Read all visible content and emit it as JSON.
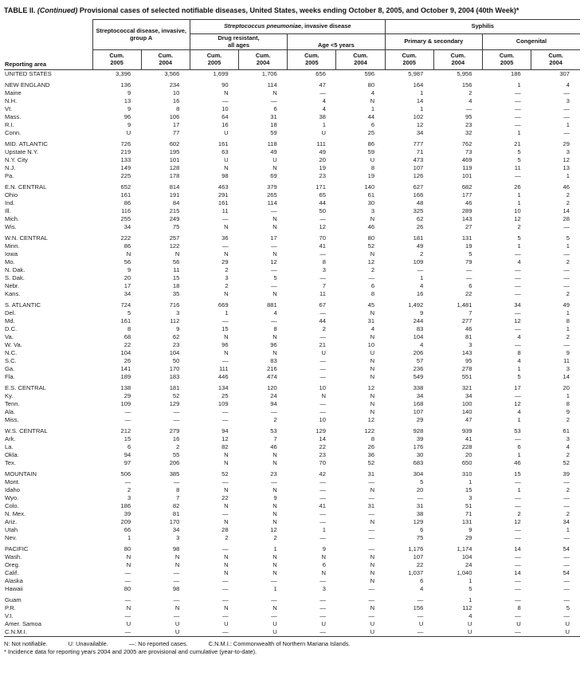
{
  "title": {
    "table_label": "TABLE II.",
    "continued": "(Continued)",
    "rest": "Provisional cases of selected notifiable diseases, United States, weeks ending October 8, 2005, and October 9, 2004 (40th Week)*"
  },
  "header": {
    "reporting_area": "Reporting area",
    "group_a": "Streptococcal disease, invasive, group A",
    "pneumoniae_italic": "Streptococcus pneumoniae",
    "pneumoniae_rest": ", invasive disease",
    "drug_resistant_line1": "Drug resistant,",
    "drug_resistant_line2": "all ages",
    "age_under5": "Age <5 years",
    "syphilis": "Syphilis",
    "primary_secondary": "Primary & secondary",
    "congenital": "Congenital",
    "cum_label": "Cum.",
    "year_2005": "2005",
    "year_2004": "2004"
  },
  "table": {
    "sections": [
      {
        "rows": [
          [
            "UNITED STATES",
            "3,396",
            "3,566",
            "1,699",
            "1,706",
            "656",
            "596",
            "5,987",
            "5,956",
            "186",
            "307"
          ]
        ]
      },
      {
        "rows": [
          [
            "NEW ENGLAND",
            "136",
            "234",
            "90",
            "114",
            "47",
            "80",
            "164",
            "156",
            "1",
            "4"
          ],
          [
            "Maine",
            "9",
            "10",
            "N",
            "N",
            "—",
            "4",
            "1",
            "2",
            "—",
            "—"
          ],
          [
            "N.H.",
            "13",
            "16",
            "—",
            "—",
            "4",
            "N",
            "14",
            "4",
            "—",
            "3"
          ],
          [
            "Vt.",
            "9",
            "8",
            "10",
            "6",
            "4",
            "1",
            "1",
            "—",
            "—",
            "—"
          ],
          [
            "Mass.",
            "96",
            "106",
            "64",
            "31",
            "38",
            "44",
            "102",
            "95",
            "—",
            "—"
          ],
          [
            "R.I.",
            "9",
            "17",
            "16",
            "18",
            "1",
            "6",
            "12",
            "23",
            "—",
            "1"
          ],
          [
            "Conn.",
            "U",
            "77",
            "U",
            "59",
            "U",
            "25",
            "34",
            "32",
            "1",
            "—"
          ]
        ]
      },
      {
        "rows": [
          [
            "MID. ATLANTIC",
            "726",
            "602",
            "161",
            "118",
            "111",
            "86",
            "777",
            "762",
            "21",
            "29"
          ],
          [
            "Upstate N.Y.",
            "219",
            "195",
            "63",
            "49",
            "49",
            "59",
            "71",
            "73",
            "5",
            "3"
          ],
          [
            "N.Y. City",
            "133",
            "101",
            "U",
            "U",
            "20",
            "U",
            "473",
            "469",
            "5",
            "12"
          ],
          [
            "N.J.",
            "149",
            "128",
            "N",
            "N",
            "19",
            "8",
            "107",
            "119",
            "11",
            "13"
          ],
          [
            "Pa.",
            "225",
            "178",
            "98",
            "69",
            "23",
            "19",
            "126",
            "101",
            "—",
            "1"
          ]
        ]
      },
      {
        "rows": [
          [
            "E.N. CENTRAL",
            "652",
            "814",
            "463",
            "379",
            "171",
            "140",
            "627",
            "682",
            "26",
            "46"
          ],
          [
            "Ohio",
            "161",
            "191",
            "291",
            "265",
            "65",
            "61",
            "166",
            "177",
            "1",
            "2"
          ],
          [
            "Ind.",
            "86",
            "84",
            "161",
            "114",
            "44",
            "30",
            "48",
            "46",
            "1",
            "2"
          ],
          [
            "Ill.",
            "116",
            "215",
            "11",
            "—",
            "50",
            "3",
            "325",
            "289",
            "10",
            "14"
          ],
          [
            "Mich.",
            "255",
            "249",
            "—",
            "N",
            "—",
            "N",
            "62",
            "143",
            "12",
            "28"
          ],
          [
            "Wis.",
            "34",
            "75",
            "N",
            "N",
            "12",
            "46",
            "26",
            "27",
            "2",
            "—"
          ]
        ]
      },
      {
        "rows": [
          [
            "W.N. CENTRAL",
            "222",
            "257",
            "36",
            "17",
            "70",
            "80",
            "181",
            "131",
            "5",
            "5"
          ],
          [
            "Minn.",
            "86",
            "122",
            "—",
            "—",
            "41",
            "52",
            "49",
            "19",
            "1",
            "1"
          ],
          [
            "Iowa",
            "N",
            "N",
            "N",
            "N",
            "—",
            "N",
            "2",
            "5",
            "—",
            "—"
          ],
          [
            "Mo.",
            "56",
            "56",
            "29",
            "12",
            "8",
            "12",
            "109",
            "79",
            "4",
            "2"
          ],
          [
            "N. Dak.",
            "9",
            "11",
            "2",
            "—",
            "3",
            "2",
            "—",
            "—",
            "—",
            "—"
          ],
          [
            "S. Dak.",
            "20",
            "15",
            "3",
            "5",
            "—",
            "—",
            "1",
            "—",
            "—",
            "—"
          ],
          [
            "Nebr.",
            "17",
            "18",
            "2",
            "—",
            "7",
            "6",
            "4",
            "6",
            "—",
            "—"
          ],
          [
            "Kans.",
            "34",
            "35",
            "N",
            "N",
            "11",
            "8",
            "16",
            "22",
            "—",
            "2"
          ]
        ]
      },
      {
        "rows": [
          [
            "S. ATLANTIC",
            "724",
            "716",
            "669",
            "881",
            "67",
            "45",
            "1,492",
            "1,481",
            "34",
            "49"
          ],
          [
            "Del.",
            "5",
            "3",
            "1",
            "4",
            "—",
            "N",
            "9",
            "7",
            "—",
            "1"
          ],
          [
            "Md.",
            "161",
            "112",
            "—",
            "—",
            "44",
            "31",
            "244",
            "277",
            "12",
            "8"
          ],
          [
            "D.C.",
            "8",
            "9",
            "15",
            "8",
            "2",
            "4",
            "83",
            "46",
            "—",
            "1"
          ],
          [
            "Va.",
            "68",
            "62",
            "N",
            "N",
            "—",
            "N",
            "104",
            "81",
            "4",
            "2"
          ],
          [
            "W. Va.",
            "22",
            "23",
            "96",
            "96",
            "21",
            "10",
            "4",
            "3",
            "—",
            "—"
          ],
          [
            "N.C.",
            "104",
            "104",
            "N",
            "N",
            "U",
            "U",
            "206",
            "143",
            "8",
            "9"
          ],
          [
            "S.C.",
            "26",
            "50",
            "—",
            "83",
            "—",
            "N",
            "57",
            "95",
            "4",
            "11"
          ],
          [
            "Ga.",
            "141",
            "170",
            "111",
            "216",
            "—",
            "N",
            "236",
            "278",
            "1",
            "3"
          ],
          [
            "Fla.",
            "189",
            "183",
            "446",
            "474",
            "—",
            "N",
            "549",
            "551",
            "5",
            "14"
          ]
        ]
      },
      {
        "rows": [
          [
            "E.S. CENTRAL",
            "138",
            "181",
            "134",
            "120",
            "10",
            "12",
            "338",
            "321",
            "17",
            "20"
          ],
          [
            "Ky.",
            "29",
            "52",
            "25",
            "24",
            "N",
            "N",
            "34",
            "34",
            "—",
            "1"
          ],
          [
            "Tenn.",
            "109",
            "129",
            "109",
            "94",
            "—",
            "N",
            "168",
            "100",
            "12",
            "8"
          ],
          [
            "Ala.",
            "—",
            "—",
            "—",
            "—",
            "—",
            "N",
            "107",
            "140",
            "4",
            "9"
          ],
          [
            "Miss.",
            "—",
            "—",
            "—",
            "2",
            "10",
            "12",
            "29",
            "47",
            "1",
            "2"
          ]
        ]
      },
      {
        "rows": [
          [
            "W.S. CENTRAL",
            "212",
            "279",
            "94",
            "53",
            "129",
            "122",
            "928",
            "939",
            "53",
            "61"
          ],
          [
            "Ark.",
            "15",
            "16",
            "12",
            "7",
            "14",
            "8",
            "39",
            "41",
            "—",
            "3"
          ],
          [
            "La.",
            "6",
            "2",
            "82",
            "46",
            "22",
            "26",
            "176",
            "228",
            "6",
            "4"
          ],
          [
            "Okla.",
            "94",
            "55",
            "N",
            "N",
            "23",
            "36",
            "30",
            "20",
            "1",
            "2"
          ],
          [
            "Tex.",
            "97",
            "206",
            "N",
            "N",
            "70",
            "52",
            "683",
            "650",
            "46",
            "52"
          ]
        ]
      },
      {
        "rows": [
          [
            "MOUNTAIN",
            "506",
            "385",
            "52",
            "23",
            "42",
            "31",
            "304",
            "310",
            "15",
            "39"
          ],
          [
            "Mont.",
            "—",
            "—",
            "—",
            "—",
            "—",
            "—",
            "5",
            "1",
            "—",
            "—"
          ],
          [
            "Idaho",
            "2",
            "8",
            "N",
            "N",
            "—",
            "N",
            "20",
            "15",
            "1",
            "2"
          ],
          [
            "Wyo.",
            "3",
            "7",
            "22",
            "9",
            "—",
            "—",
            "—",
            "3",
            "—",
            "—"
          ],
          [
            "Colo.",
            "186",
            "82",
            "N",
            "N",
            "41",
            "31",
            "31",
            "51",
            "—",
            "—"
          ],
          [
            "N. Mex.",
            "39",
            "81",
            "—",
            "N",
            "—",
            "—",
            "38",
            "71",
            "2",
            "2"
          ],
          [
            "Ariz.",
            "209",
            "170",
            "N",
            "N",
            "—",
            "N",
            "129",
            "131",
            "12",
            "34"
          ],
          [
            "Utah",
            "66",
            "34",
            "28",
            "12",
            "1",
            "—",
            "6",
            "9",
            "—",
            "1"
          ],
          [
            "Nev.",
            "1",
            "3",
            "2",
            "2",
            "—",
            "—",
            "75",
            "29",
            "—",
            "—"
          ]
        ]
      },
      {
        "rows": [
          [
            "PACIFIC",
            "80",
            "98",
            "—",
            "1",
            "9",
            "—",
            "1,176",
            "1,174",
            "14",
            "54"
          ],
          [
            "Wash.",
            "N",
            "N",
            "N",
            "N",
            "N",
            "N",
            "107",
            "104",
            "—",
            "—"
          ],
          [
            "Oreg.",
            "N",
            "N",
            "N",
            "N",
            "6",
            "N",
            "22",
            "24",
            "—",
            "—"
          ],
          [
            "Calif.",
            "—",
            "—",
            "N",
            "N",
            "N",
            "N",
            "1,037",
            "1,040",
            "14",
            "54"
          ],
          [
            "Alaska",
            "—",
            "—",
            "—",
            "—",
            "—",
            "N",
            "6",
            "1",
            "—",
            "—"
          ],
          [
            "Hawaii",
            "80",
            "98",
            "—",
            "1",
            "3",
            "—",
            "4",
            "5",
            "—",
            "—"
          ]
        ]
      },
      {
        "rows": [
          [
            "Guam",
            "—",
            "—",
            "—",
            "—",
            "—",
            "—",
            "—",
            "1",
            "—",
            "—"
          ],
          [
            "P.R.",
            "N",
            "N",
            "N",
            "N",
            "—",
            "N",
            "156",
            "112",
            "8",
            "5"
          ],
          [
            "V.I.",
            "—",
            "—",
            "—",
            "—",
            "—",
            "—",
            "—",
            "4",
            "—",
            "—"
          ],
          [
            "Amer. Samoa",
            "U",
            "U",
            "U",
            "U",
            "U",
            "U",
            "U",
            "U",
            "U",
            "U"
          ],
          [
            "C.N.M.I.",
            "—",
            "U",
            "—",
            "U",
            "—",
            "U",
            "—",
            "U",
            "—",
            "U"
          ]
        ]
      }
    ]
  },
  "footnotes": {
    "legend": [
      "N: Not notifiable.",
      "U: Unavailable.",
      "—: No reported cases.",
      "C.N.M.I.: Commonwealth of Northern Mariana Islands."
    ],
    "incidence_note": "* Incidence data for reporting years 2004 and 2005 are provisional and cumulative (year-to-date)."
  }
}
